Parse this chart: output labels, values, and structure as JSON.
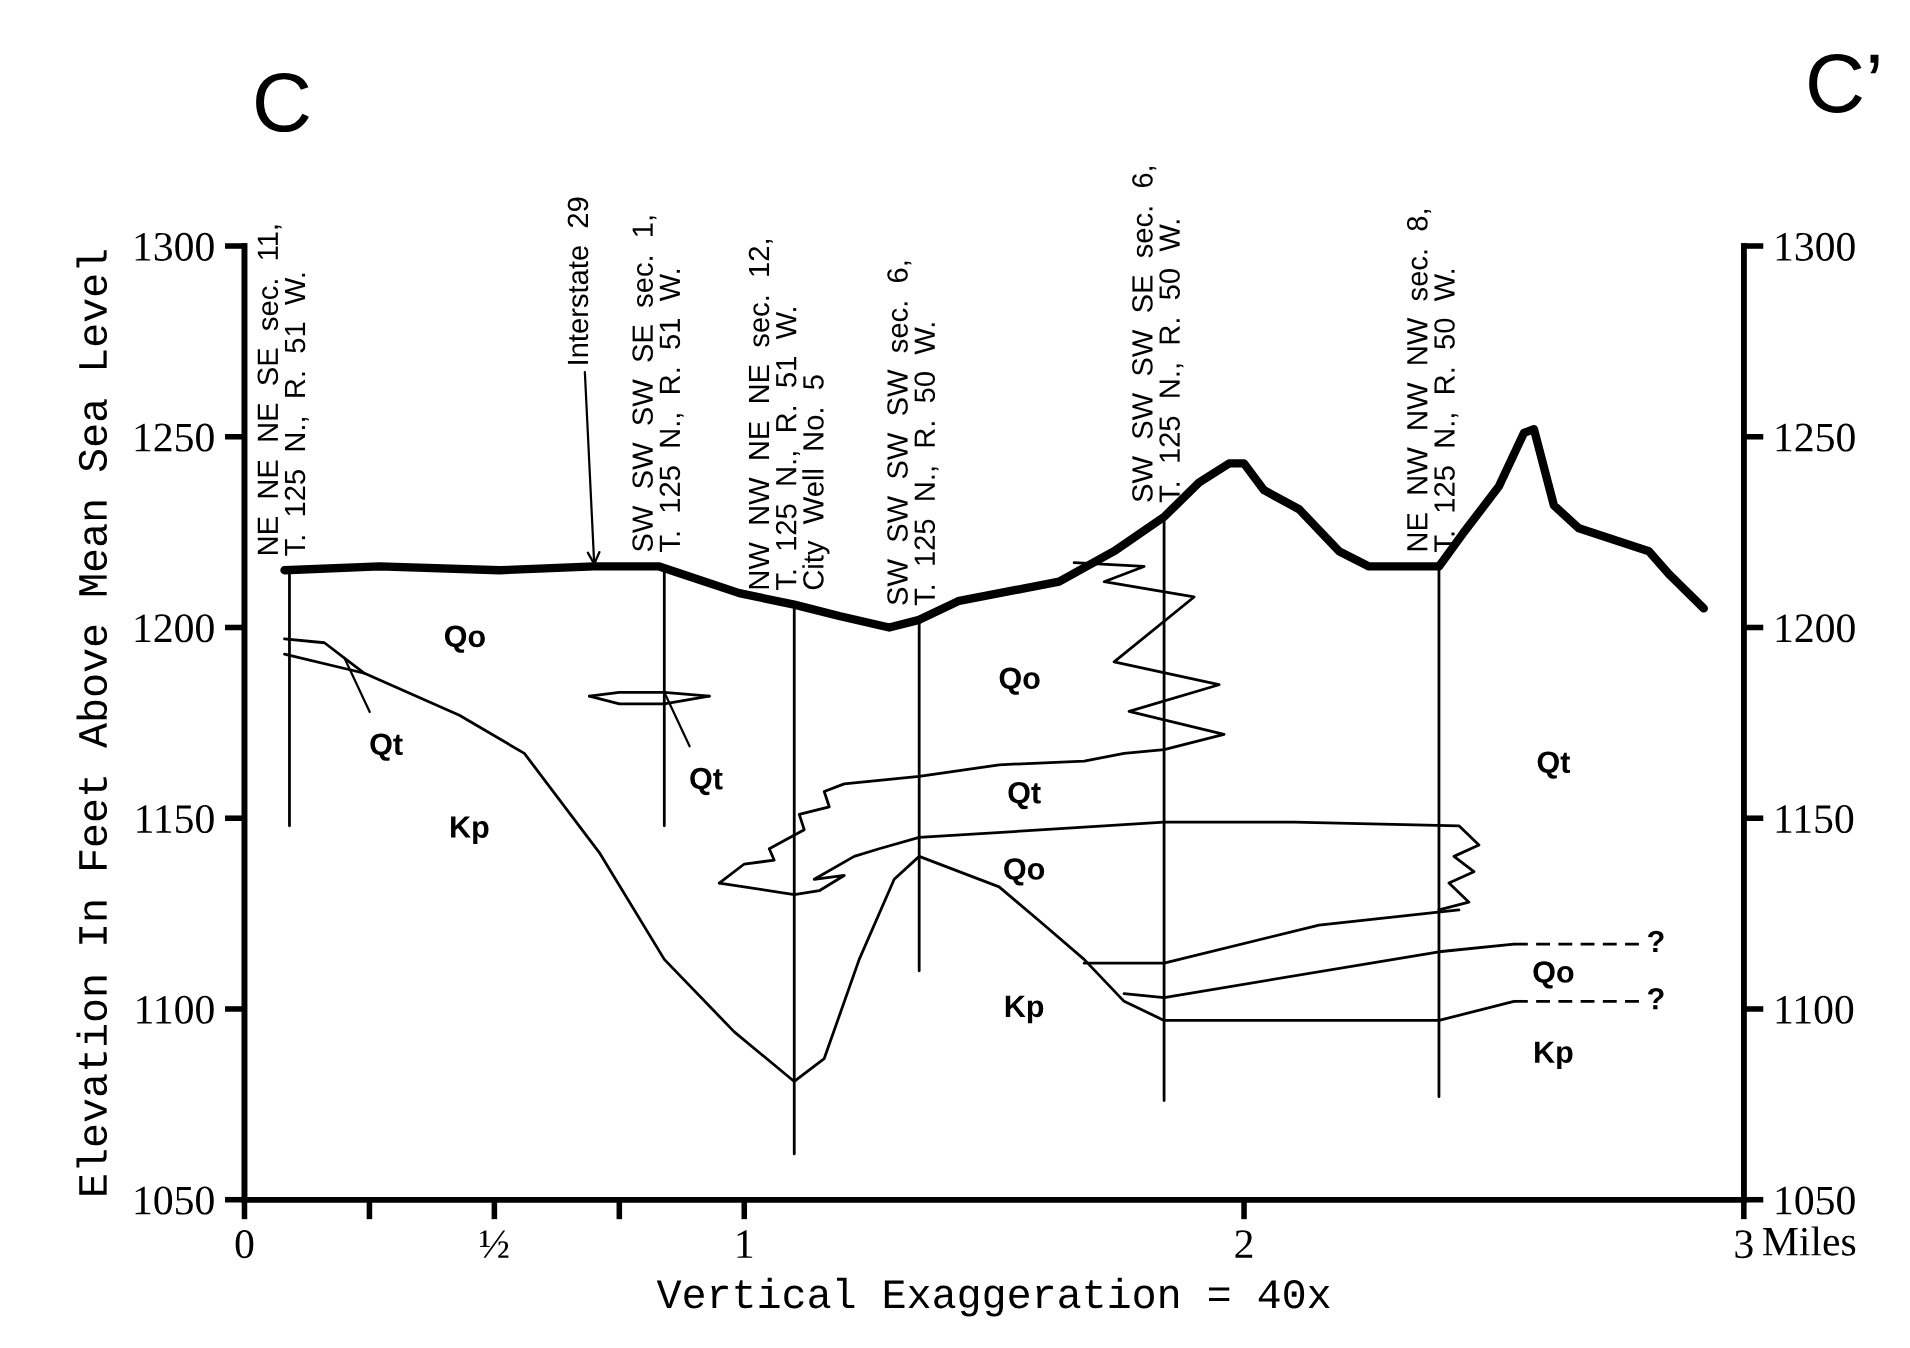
{
  "chart_data": {
    "type": "line",
    "xlabel": "Vertical Exaggeration = 40x",
    "ylabel": "Elevation In Feet Above Mean Sea Level",
    "xlim": [
      0,
      3
    ],
    "ylim": [
      1050,
      1300
    ],
    "y2lim": [
      1050,
      1300
    ],
    "xticks": [
      0,
      {
        "value": 0.25,
        "label": null
      },
      {
        "value": 0.5,
        "label": "½"
      },
      {
        "value": 0.75,
        "label": null
      },
      1,
      2,
      3
    ],
    "yticks": [
      1050,
      1100,
      1150,
      1200,
      1250,
      1300
    ],
    "y2ticks": [
      1050,
      1100,
      1150,
      1200,
      1250,
      1300
    ],
    "grid": false,
    "legend": false,
    "marker": "none",
    "series": [
      {
        "color": "#000000",
        "x": [
          0.08,
          0.27,
          0.51,
          0.7,
          0.83,
          0.99,
          1.1,
          1.19,
          1.29,
          1.35,
          1.43,
          1.63,
          1.74,
          1.84,
          1.91,
          1.97,
          2.0,
          2.04,
          2.11,
          2.19,
          2.25,
          2.39,
          2.44,
          2.51,
          2.56,
          2.58,
          2.62,
          2.67,
          2.81,
          2.85,
          2.92
        ],
        "values": [
          1215,
          1216,
          1215,
          1216,
          1216,
          1209,
          1206,
          1203,
          1200,
          1202,
          1207,
          1212,
          1220,
          1229,
          1238,
          1243,
          1243,
          1236,
          1231,
          1220,
          1216,
          1216,
          1225,
          1237,
          1251,
          1252,
          1232,
          1226,
          1220,
          1214,
          1205
        ]
      },
      {
        "color": "#000000",
        "x": [
          0.09,
          0.09
        ],
        "values": [
          1215,
          1148
        ]
      },
      {
        "color": "#000000",
        "x": [
          0.84,
          0.84
        ],
        "values": [
          1216,
          1148
        ]
      },
      {
        "color": "#000000",
        "x": [
          1.1,
          1.1
        ],
        "values": [
          1206,
          1062
        ]
      },
      {
        "color": "#000000",
        "x": [
          1.35,
          1.35
        ],
        "values": [
          1202,
          1110
        ]
      },
      {
        "color": "#000000",
        "x": [
          1.84,
          1.84
        ],
        "values": [
          1229,
          1076
        ]
      },
      {
        "color": "#000000",
        "x": [
          2.39,
          2.39
        ],
        "values": [
          1216,
          1077
        ]
      },
      {
        "color": "#000000",
        "x": [
          0.08,
          0.16,
          0.24
        ],
        "values": [
          1197,
          1196,
          1188
        ]
      },
      {
        "color": "#000000",
        "x": [
          0.08,
          0.24,
          0.43,
          0.56,
          0.71,
          0.84,
          0.98,
          1.1,
          1.16,
          1.23,
          1.3,
          1.35,
          1.51,
          1.6,
          1.68,
          1.76,
          1.84,
          2.39,
          2.54
        ],
        "values": [
          1193,
          1188,
          1177,
          1167,
          1141,
          1113,
          1094,
          1081,
          1087,
          1113,
          1134,
          1140,
          1132,
          1122,
          1113,
          1102,
          1097,
          1097,
          1102
        ]
      },
      {
        "color": "#000000",
        "x": [
          1.68,
          1.84,
          2.15,
          2.43
        ],
        "values": [
          1112,
          1112,
          1122,
          1126
        ]
      },
      {
        "color": "#000000",
        "x": [
          1.76,
          1.84,
          2.39,
          2.54
        ],
        "values": [
          1104,
          1103,
          1115,
          1117
        ]
      },
      {
        "color": "#000000",
        "line_style": "dashed",
        "x": [
          2.54,
          2.8
        ],
        "values": [
          1117,
          1117
        ]
      },
      {
        "color": "#000000",
        "line_style": "dashed",
        "x": [
          2.54,
          2.8
        ],
        "values": [
          1102,
          1102
        ]
      },
      {
        "color": "#000000",
        "x": [
          0.95,
          1.1,
          1.15,
          1.2,
          1.14,
          1.22,
          1.27,
          1.35,
          1.6,
          1.84,
          2.1,
          2.43,
          2.47,
          2.42,
          2.46,
          2.41,
          2.45,
          2.39
        ],
        "values": [
          1133,
          1130,
          1131,
          1135,
          1134,
          1140,
          1142,
          1145,
          1147,
          1149,
          1149,
          1148,
          1143,
          1140,
          1136,
          1133,
          1128,
          1126
        ]
      },
      {
        "color": "#000000",
        "x": [
          0.95,
          1.0,
          1.06,
          1.05,
          1.12,
          1.11,
          1.17,
          1.16,
          1.2,
          1.35,
          1.51,
          1.68,
          1.76,
          1.84,
          1.96,
          1.77,
          1.95,
          1.74,
          1.9,
          1.72,
          1.8,
          1.66
        ],
        "values": [
          1133,
          1138,
          1139,
          1142,
          1147,
          1151,
          1153,
          1157,
          1159,
          1161,
          1164,
          1165,
          1167,
          1168,
          1172,
          1178,
          1185,
          1191,
          1208,
          1212,
          1216,
          1217
        ]
      },
      {
        "color": "#000000",
        "x": [
          0.69,
          0.75,
          0.84,
          0.93
        ],
        "values": [
          1182,
          1183,
          1183,
          1182
        ]
      },
      {
        "color": "#000000",
        "x": [
          0.69,
          0.75,
          0.84,
          0.93
        ],
        "values": [
          1182,
          1180,
          1180,
          1182
        ]
      }
    ],
    "annotations": [
      {
        "text": "NE  NE  NE  SE  sec.  11,\nT.  125  N.,  R.  51  W.",
        "x": 0.09,
        "y": 1215
      },
      {
        "text": "Interstate  29",
        "x": 0.7,
        "y": 1216
      },
      {
        "text": "SW  SW  SW  SE  sec.  1,\nT.  125  N.,  R.  51  W.",
        "x": 0.84,
        "y": 1216
      },
      {
        "text": "NW  NW  NE  NE  sec.  12,\nT.  125  N.,  R.  51  W.\nCity  Well  No.  5",
        "x": 1.1,
        "y": 1206
      },
      {
        "text": "SW  SW  SW  SW  sec.  6,\nT.  125  N.,  R.  50  W.",
        "x": 1.35,
        "y": 1202
      },
      {
        "text": "SW  SW  SW  SE  sec.  6,\nT.  125  N.,  R.  50  W.",
        "x": 1.84,
        "y": 1229
      },
      {
        "text": "NE  NW  NW  NW  sec.  8,\nT.  125  N.,  R.  50  W.",
        "x": 2.39,
        "y": 1216
      },
      {
        "text": "Qt",
        "x": 0.2,
        "y": 1192
      },
      {
        "text": "Qt",
        "x": 0.84,
        "y": 1183
      },
      {
        "text": "?",
        "x": 2.8,
        "y": 1117
      },
      {
        "text": "?",
        "x": 2.8,
        "y": 1102
      },
      "Qo",
      "Kp",
      "Qo",
      "Qt",
      "Qo",
      "Kp",
      "Qt",
      "Qo",
      "Kp",
      "C",
      "C’",
      "Miles"
    ]
  }
}
